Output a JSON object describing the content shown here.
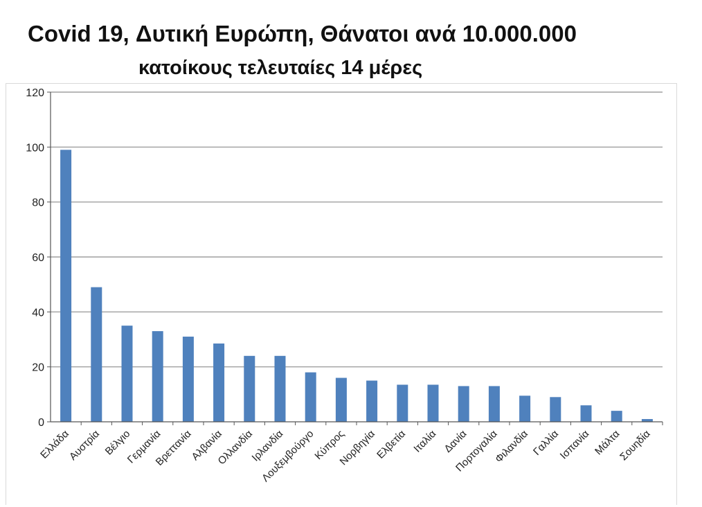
{
  "title_line1": "Covid 19, Δυτική Ευρώπη, Θάνατοι ανά 10.000.000",
  "title_line2": "κατοίκους τελευταίες 14 μέρες",
  "bar_color": "#4F81BD",
  "chart_data": {
    "type": "bar",
    "title": "Covid 19, Δυτική Ευρώπη, Θάνατοι ανά 10.000.000 κατοίκους τελευταίες 14 μέρες",
    "xlabel": "",
    "ylabel": "",
    "ylim": [
      0,
      120
    ],
    "yticks": [
      0,
      20,
      40,
      60,
      80,
      100,
      120
    ],
    "grid": true,
    "legend": "none",
    "categories": [
      "Ελλάδα",
      "Αυστρία",
      "Βέλγιο",
      "Γερμανία",
      "Βρεττανία",
      "Αλβανία",
      "Ολλανδία",
      "Ιρλανδία",
      "Λουξεμβούργο",
      "Κύπρος",
      "Νορβηγία",
      "Ελβετία",
      "Ιταλία",
      "Δανία",
      "Πορτογαλία",
      "Φιλανδία",
      "Γαλλία",
      "Ισπανία",
      "Μάλτα",
      "Σουηδία"
    ],
    "values": [
      99,
      49,
      35,
      33,
      31,
      28.5,
      24,
      24,
      18,
      16,
      15,
      13.5,
      13.5,
      13,
      13,
      9.5,
      9,
      6,
      4,
      1
    ]
  }
}
